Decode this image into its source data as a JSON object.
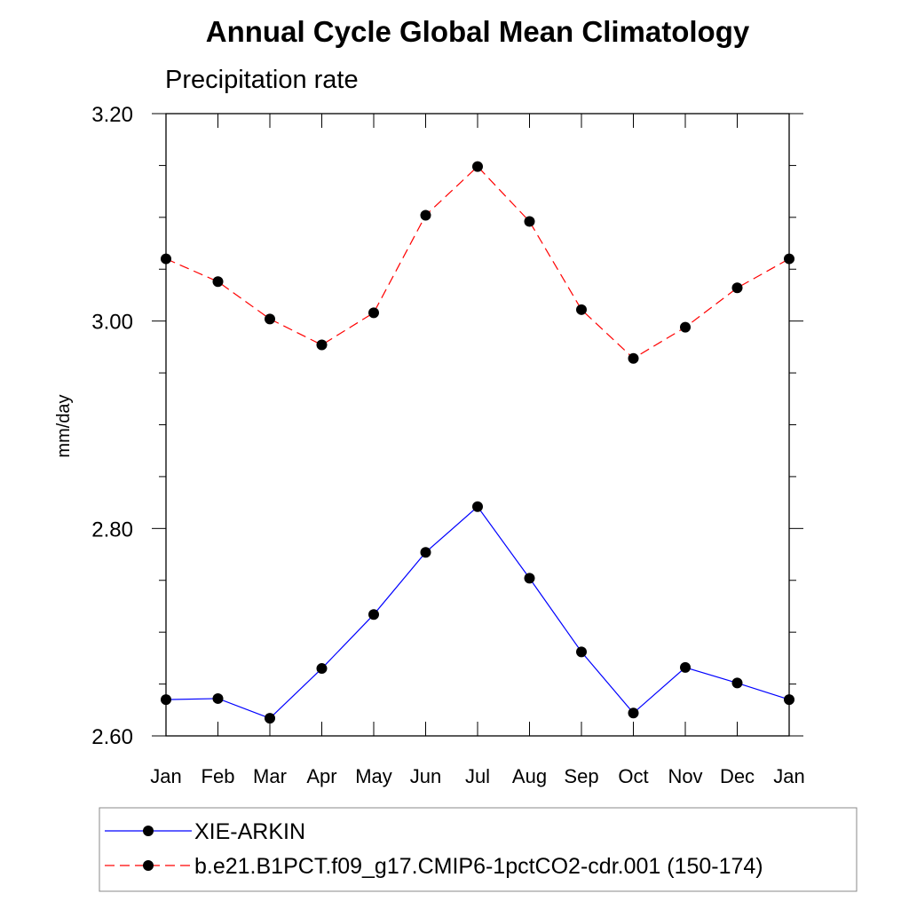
{
  "chart_data": {
    "type": "line",
    "title": "Annual Cycle Global Mean Climatology",
    "subtitle": "Precipitation rate",
    "ylabel": "mm/day",
    "xlabel": "",
    "categories": [
      "Jan",
      "Feb",
      "Mar",
      "Apr",
      "May",
      "Jun",
      "Jul",
      "Aug",
      "Sep",
      "Oct",
      "Nov",
      "Dec",
      "Jan"
    ],
    "ylim": [
      2.6,
      3.2
    ],
    "yticks": [
      "2.60",
      "2.80",
      "3.00",
      "3.20"
    ],
    "grid": false,
    "legend_position": "bottom",
    "series": [
      {
        "name": "XIE-ARKIN",
        "color": "#0000ff",
        "line_style": "solid",
        "marker": "filled-circle",
        "values": [
          2.635,
          2.636,
          2.617,
          2.665,
          2.717,
          2.777,
          2.821,
          2.752,
          2.681,
          2.622,
          2.666,
          2.651,
          2.635
        ]
      },
      {
        "name": "b.e21.B1PCT.f09_g17.CMIP6-1pctCO2-cdr.001 (150-174)",
        "color": "#ff0000",
        "line_style": "dashed",
        "marker": "filled-circle",
        "values": [
          3.06,
          3.038,
          3.002,
          2.977,
          3.008,
          3.102,
          3.149,
          3.096,
          3.011,
          2.964,
          2.994,
          3.032,
          3.06
        ]
      }
    ]
  }
}
